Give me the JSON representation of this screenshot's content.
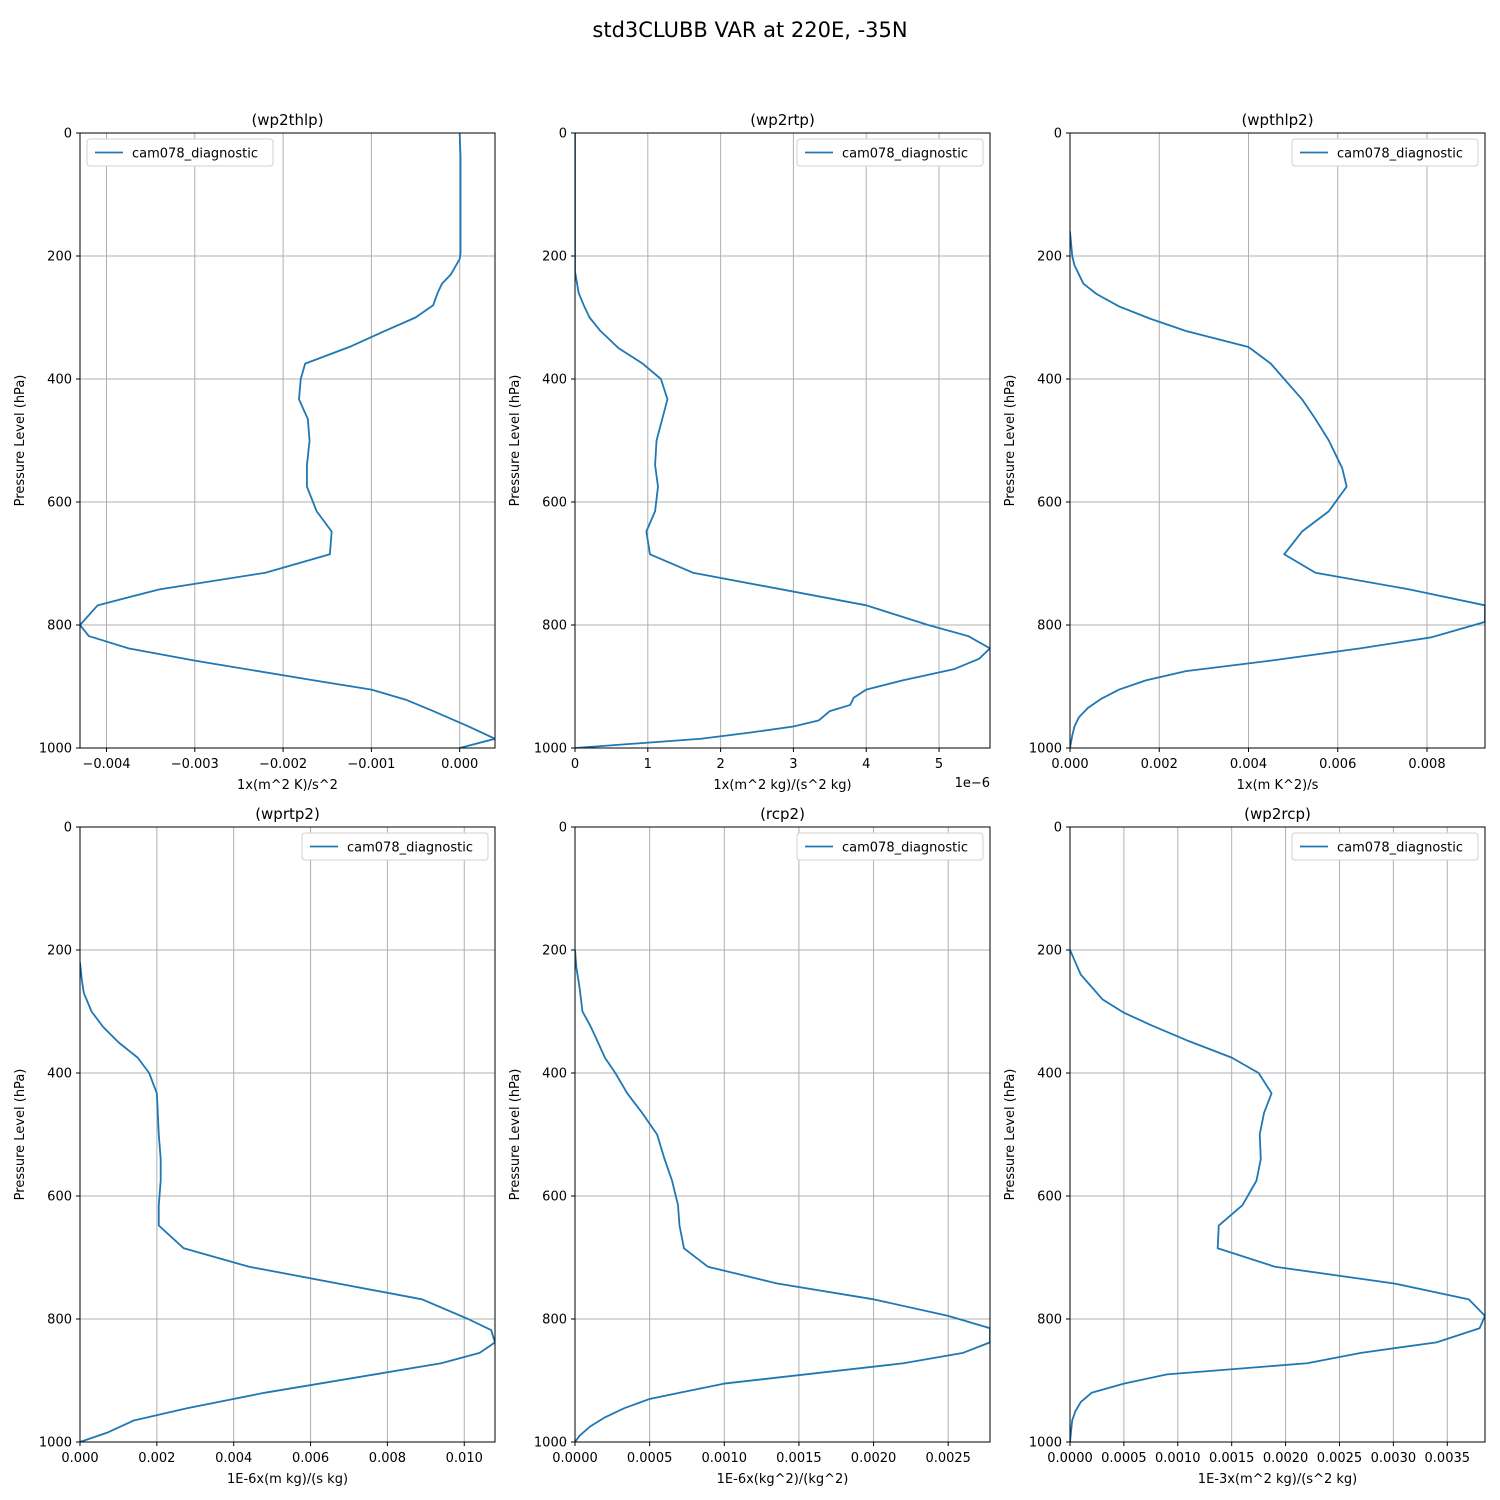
{
  "figure": {
    "title": "std3CLUBB VAR at 220E, -35N",
    "series_color": "#1f77b4"
  },
  "chart_data": [
    {
      "type": "line",
      "title": "(wp2thlp)",
      "xlabel": "1x(m^2 K)/s^2",
      "ylabel": "Pressure Level (hPa)",
      "x_offset_text": "",
      "xlim": [
        -0.0043,
        0.0004
      ],
      "ylim": [
        1000,
        0
      ],
      "x_ticks": [
        -0.004,
        -0.003,
        -0.002,
        -0.001,
        0.0
      ],
      "x_tick_labels": [
        "−0.004",
        "−0.003",
        "−0.002",
        "−0.001",
        "0.000"
      ],
      "y_ticks": [
        0,
        200,
        400,
        600,
        800,
        1000
      ],
      "y_tick_labels": [
        "0",
        "200",
        "400",
        "600",
        "800",
        "1000"
      ],
      "legend": "upper-left",
      "grid": true,
      "series": [
        {
          "name": "cam078_diagnostic",
          "x": [
            0,
            1e-05,
            1e-05,
            1e-05,
            1e-05,
            1e-05,
            0.0,
            -0.0001,
            -0.0002,
            -0.00025,
            -0.0003,
            -0.0005,
            -0.00085,
            -0.00125,
            -0.00175,
            -0.0018,
            -0.00182,
            -0.00172,
            -0.0017,
            -0.00173,
            -0.00173,
            -0.00162,
            -0.00145,
            -0.00147,
            -0.0022,
            -0.0034,
            -0.0041,
            -0.0043,
            -0.0042,
            -0.00375,
            -0.003,
            -0.00165,
            -0.001,
            -0.0006,
            -0.0003,
            0.0001,
            0.0004,
            0.0
          ],
          "y": [
            0,
            40,
            80,
            120,
            160,
            195,
            205,
            230,
            245,
            260,
            280,
            300,
            322,
            348,
            375,
            400,
            433,
            465,
            500,
            540,
            575,
            615,
            648,
            685,
            715,
            742,
            768,
            800,
            818,
            838,
            858,
            890,
            905,
            922,
            940,
            965,
            985,
            1000
          ]
        }
      ]
    },
    {
      "type": "line",
      "title": "(wp2rtp)",
      "xlabel": "1x(m^2 kg)/(s^2 kg)",
      "ylabel": "Pressure Level (hPa)",
      "x_offset_text": "1e−6",
      "xlim": [
        0,
        5.7e-06
      ],
      "ylim": [
        1000,
        0
      ],
      "x_ticks": [
        0,
        1e-06,
        2e-06,
        3e-06,
        4e-06,
        5e-06
      ],
      "x_tick_labels": [
        "0",
        "1",
        "2",
        "3",
        "4",
        "5"
      ],
      "y_ticks": [
        0,
        200,
        400,
        600,
        800,
        1000
      ],
      "y_tick_labels": [
        "0",
        "200",
        "400",
        "600",
        "800",
        "1000"
      ],
      "legend": "upper-right",
      "grid": true,
      "series": [
        {
          "name": "cam078_diagnostic",
          "x": [
            0,
            0,
            0,
            0,
            0,
            0,
            5e-08,
            1.2e-07,
            2e-07,
            3.5e-07,
            6e-07,
            9.3e-07,
            1.18e-06,
            1.27e-06,
            1.12e-06,
            1.1e-06,
            1.14e-06,
            1.1e-06,
            9.8e-07,
            1.03e-06,
            1.62e-06,
            4e-06,
            4.85e-06,
            5.4e-06,
            5.7e-06,
            5.55e-06,
            5.2e-06,
            4.5e-06,
            4e-06,
            3.83e-06,
            3.78e-06,
            3.5e-06,
            3.35e-06,
            3e-06,
            2.4e-06,
            1.73e-06,
            0
          ],
          "y": [
            0,
            50,
            100,
            150,
            200,
            225,
            260,
            280,
            300,
            322,
            350,
            375,
            400,
            433,
            500,
            540,
            575,
            615,
            648,
            685,
            715,
            768,
            800,
            818,
            838,
            855,
            872,
            890,
            905,
            918,
            930,
            940,
            955,
            965,
            975,
            985,
            1000
          ]
        }
      ]
    },
    {
      "type": "line",
      "title": "(wpthlp2)",
      "xlabel": "1x(m K^2)/s",
      "ylabel": "Pressure Level (hPa)",
      "x_offset_text": "",
      "xlim": [
        0,
        0.0093
      ],
      "ylim": [
        1000,
        0
      ],
      "x_ticks": [
        0,
        0.002,
        0.004,
        0.006,
        0.008
      ],
      "x_tick_labels": [
        "0.000",
        "0.002",
        "0.004",
        "0.006",
        "0.008"
      ],
      "y_ticks": [
        0,
        200,
        400,
        600,
        800,
        1000
      ],
      "y_tick_labels": [
        "0",
        "200",
        "400",
        "600",
        "800",
        "1000"
      ],
      "legend": "upper-right",
      "grid": true,
      "series": [
        {
          "name": "cam078_diagnostic",
          "x": [
            0,
            5e-05,
            0.0001,
            0.0002,
            0.0003,
            0.0006,
            0.0011,
            0.0018,
            0.0026,
            0.004,
            0.0045,
            0.0048,
            0.0052,
            0.0055,
            0.0058,
            0.0061,
            0.0062,
            0.0058,
            0.0052,
            0.0048,
            0.0055,
            0.0076,
            0.0093,
            0.0093,
            0.0081,
            0.0065,
            0.0045,
            0.0026,
            0.0017,
            0.0011,
            0.0007,
            0.0004,
            0.0002,
            0.0001,
            5e-05,
            0
          ],
          "y": [
            160,
            200,
            215,
            230,
            245,
            262,
            282,
            302,
            322,
            348,
            375,
            400,
            433,
            465,
            500,
            545,
            575,
            615,
            648,
            685,
            715,
            742,
            768,
            795,
            820,
            838,
            858,
            875,
            890,
            905,
            920,
            935,
            950,
            965,
            980,
            1000
          ]
        }
      ]
    },
    {
      "type": "line",
      "title": "(wprtp2)",
      "xlabel": "1E-6x(m kg)/(s kg)",
      "ylabel": "Pressure Level (hPa)",
      "x_offset_text": "",
      "xlim": [
        0,
        0.0108
      ],
      "ylim": [
        1000,
        0
      ],
      "x_ticks": [
        0,
        0.002,
        0.004,
        0.006,
        0.008,
        0.01
      ],
      "x_tick_labels": [
        "0.000",
        "0.002",
        "0.004",
        "0.006",
        "0.008",
        "0.010"
      ],
      "y_ticks": [
        0,
        200,
        400,
        600,
        800,
        1000
      ],
      "y_tick_labels": [
        "0",
        "200",
        "400",
        "600",
        "800",
        "1000"
      ],
      "legend": "upper-right",
      "grid": true,
      "series": [
        {
          "name": "cam078_diagnostic",
          "x": [
            0,
            5e-05,
            0.0001,
            0.0002,
            0.0003,
            0.0006,
            0.001,
            0.0015,
            0.0018,
            0.002,
            0.00205,
            0.0021,
            0.0021,
            0.00205,
            0.00205,
            0.0027,
            0.0044,
            0.0089,
            0.0101,
            0.0107,
            0.0108,
            0.0104,
            0.0094,
            0.0048,
            0.0028,
            0.0014,
            0.0007,
            0
          ],
          "y": [
            220,
            250,
            270,
            285,
            300,
            325,
            350,
            375,
            400,
            433,
            500,
            540,
            575,
            615,
            648,
            685,
            715,
            768,
            800,
            818,
            838,
            855,
            872,
            920,
            945,
            965,
            985,
            1000
          ]
        }
      ]
    },
    {
      "type": "line",
      "title": "(rcp2)",
      "xlabel": "1E-6x(kg^2)/(kg^2)",
      "ylabel": "Pressure Level (hPa)",
      "x_offset_text": "",
      "xlim": [
        0,
        0.00278
      ],
      "ylim": [
        1000,
        0
      ],
      "x_ticks": [
        0,
        0.0005,
        0.001,
        0.0015,
        0.002,
        0.0025
      ],
      "x_tick_labels": [
        "0.0000",
        "0.0005",
        "0.0010",
        "0.0015",
        "0.0020",
        "0.0025"
      ],
      "y_ticks": [
        0,
        200,
        400,
        600,
        800,
        1000
      ],
      "y_tick_labels": [
        "0",
        "200",
        "400",
        "600",
        "800",
        "1000"
      ],
      "legend": "upper-right",
      "grid": true,
      "series": [
        {
          "name": "cam078_diagnostic",
          "x": [
            0,
            1e-05,
            3e-05,
            4e-05,
            5e-05,
            0.0001,
            0.00015,
            0.0002,
            0.00027,
            0.00035,
            0.00045,
            0.00055,
            0.0006,
            0.00065,
            0.00069,
            0.0007,
            0.00073,
            0.00089,
            0.00135,
            0.002,
            0.0025,
            0.00278,
            0.00278,
            0.0026,
            0.0022,
            0.001,
            0.0007,
            0.0005,
            0.00033,
            0.0002,
            0.0001,
            3e-05,
            0
          ],
          "y": [
            200,
            230,
            260,
            280,
            300,
            322,
            348,
            375,
            400,
            433,
            465,
            500,
            540,
            575,
            615,
            648,
            685,
            715,
            742,
            768,
            795,
            815,
            838,
            855,
            872,
            905,
            920,
            930,
            945,
            960,
            975,
            990,
            1000
          ]
        }
      ]
    },
    {
      "type": "line",
      "title": "(wp2rcp)",
      "xlabel": "1E-3x(m^2 kg)/(s^2 kg)",
      "ylabel": "Pressure Level (hPa)",
      "x_offset_text": "",
      "xlim": [
        0,
        0.00385
      ],
      "ylim": [
        1000,
        0
      ],
      "x_ticks": [
        0,
        0.0005,
        0.001,
        0.0015,
        0.002,
        0.0025,
        0.003,
        0.0035
      ],
      "x_tick_labels": [
        "0.0000",
        "0.0005",
        "0.0010",
        "0.0015",
        "0.0020",
        "0.0025",
        "0.0030",
        "0.0035"
      ],
      "y_ticks": [
        0,
        200,
        400,
        600,
        800,
        1000
      ],
      "y_tick_labels": [
        "0",
        "200",
        "400",
        "600",
        "800",
        "1000"
      ],
      "legend": "upper-right",
      "grid": true,
      "series": [
        {
          "name": "cam078_diagnostic",
          "x": [
            0,
            5e-05,
            0.0001,
            0.0002,
            0.0003,
            0.0005,
            0.00075,
            0.0011,
            0.0015,
            0.00175,
            0.00187,
            0.0018,
            0.00176,
            0.00177,
            0.00173,
            0.0016,
            0.00138,
            0.00137,
            0.0019,
            0.003,
            0.0037,
            0.00385,
            0.0038,
            0.0034,
            0.0027,
            0.0022,
            0.0009,
            0.0005,
            0.0002,
            0.0001,
            5e-05,
            2e-05,
            0
          ],
          "y": [
            200,
            220,
            240,
            260,
            280,
            302,
            322,
            348,
            375,
            400,
            433,
            465,
            500,
            540,
            575,
            615,
            648,
            685,
            715,
            742,
            768,
            795,
            815,
            838,
            855,
            872,
            890,
            905,
            920,
            935,
            950,
            965,
            1000
          ]
        }
      ]
    }
  ]
}
